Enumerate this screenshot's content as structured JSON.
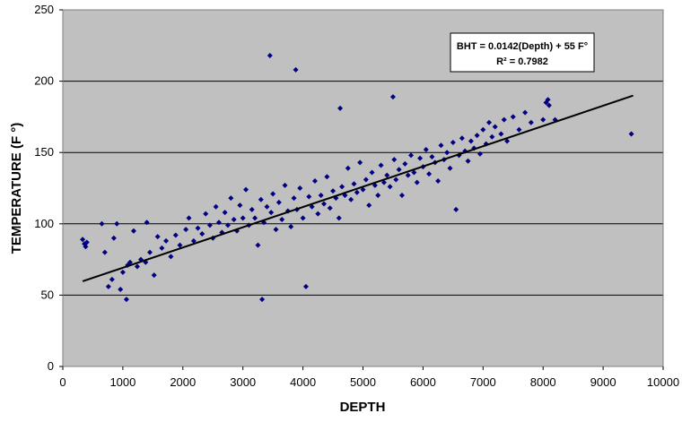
{
  "chart_data": {
    "type": "scatter",
    "title": "",
    "xlabel": "DEPTH",
    "ylabel": "TEMPERATURE (F °)",
    "xlim": [
      0,
      10000
    ],
    "ylim": [
      0,
      250
    ],
    "xticks": [
      "0",
      "1000",
      "2000",
      "3000",
      "4000",
      "5000",
      "6000",
      "7000",
      "8000",
      "9000",
      "10000"
    ],
    "yticks": [
      "0",
      "50",
      "100",
      "150",
      "200",
      "250"
    ],
    "grid": "horizontal",
    "legend": "none",
    "colors": {
      "marker": "#000080",
      "plot_bg": "#c0c0c0",
      "trendline": "#000000"
    },
    "trendline": {
      "slope": 0.0142,
      "intercept": 55,
      "x_range": [
        330,
        9500
      ]
    },
    "annotation": {
      "line1": "BHT = 0.0142(Depth) + 55 F°",
      "line2": "R² = 0.7982"
    },
    "points": [
      [
        330,
        89
      ],
      [
        360,
        86
      ],
      [
        380,
        84
      ],
      [
        400,
        87
      ],
      [
        650,
        100
      ],
      [
        700,
        80
      ],
      [
        760,
        56
      ],
      [
        820,
        61
      ],
      [
        850,
        90
      ],
      [
        900,
        100
      ],
      [
        960,
        54
      ],
      [
        1000,
        66
      ],
      [
        1060,
        47
      ],
      [
        1080,
        71
      ],
      [
        1120,
        73
      ],
      [
        1180,
        95
      ],
      [
        1240,
        70
      ],
      [
        1300,
        75
      ],
      [
        1380,
        73
      ],
      [
        1400,
        101
      ],
      [
        1450,
        80
      ],
      [
        1520,
        64
      ],
      [
        1580,
        91
      ],
      [
        1650,
        83
      ],
      [
        1720,
        88
      ],
      [
        1800,
        77
      ],
      [
        1880,
        92
      ],
      [
        1950,
        85
      ],
      [
        2050,
        96
      ],
      [
        2100,
        104
      ],
      [
        2180,
        88
      ],
      [
        2250,
        97
      ],
      [
        2320,
        93
      ],
      [
        2380,
        107
      ],
      [
        2450,
        99
      ],
      [
        2500,
        90
      ],
      [
        2550,
        112
      ],
      [
        2600,
        101
      ],
      [
        2650,
        94
      ],
      [
        2700,
        108
      ],
      [
        2750,
        99
      ],
      [
        2800,
        118
      ],
      [
        2850,
        103
      ],
      [
        2900,
        95
      ],
      [
        2950,
        113
      ],
      [
        3000,
        104
      ],
      [
        3050,
        124
      ],
      [
        3100,
        99
      ],
      [
        3150,
        110
      ],
      [
        3200,
        104
      ],
      [
        3250,
        85
      ],
      [
        3300,
        117
      ],
      [
        3320,
        47
      ],
      [
        3350,
        101
      ],
      [
        3400,
        112
      ],
      [
        3450,
        218
      ],
      [
        3470,
        108
      ],
      [
        3500,
        121
      ],
      [
        3550,
        96
      ],
      [
        3600,
        115
      ],
      [
        3650,
        103
      ],
      [
        3700,
        127
      ],
      [
        3750,
        109
      ],
      [
        3800,
        98
      ],
      [
        3850,
        118
      ],
      [
        3880,
        208
      ],
      [
        3900,
        110
      ],
      [
        3950,
        125
      ],
      [
        4000,
        104
      ],
      [
        4050,
        56
      ],
      [
        4100,
        119
      ],
      [
        4150,
        112
      ],
      [
        4200,
        130
      ],
      [
        4250,
        107
      ],
      [
        4300,
        120
      ],
      [
        4350,
        114
      ],
      [
        4400,
        133
      ],
      [
        4450,
        111
      ],
      [
        4500,
        123
      ],
      [
        4550,
        118
      ],
      [
        4600,
        104
      ],
      [
        4620,
        181
      ],
      [
        4650,
        126
      ],
      [
        4700,
        120
      ],
      [
        4750,
        139
      ],
      [
        4800,
        117
      ],
      [
        4850,
        128
      ],
      [
        4900,
        122
      ],
      [
        4950,
        143
      ],
      [
        5000,
        124
      ],
      [
        5050,
        131
      ],
      [
        5100,
        113
      ],
      [
        5150,
        136
      ],
      [
        5200,
        127
      ],
      [
        5250,
        120
      ],
      [
        5300,
        141
      ],
      [
        5350,
        129
      ],
      [
        5400,
        134
      ],
      [
        5450,
        126
      ],
      [
        5500,
        189
      ],
      [
        5520,
        145
      ],
      [
        5550,
        131
      ],
      [
        5600,
        138
      ],
      [
        5650,
        120
      ],
      [
        5700,
        142
      ],
      [
        5750,
        134
      ],
      [
        5800,
        148
      ],
      [
        5850,
        136
      ],
      [
        5900,
        129
      ],
      [
        5950,
        146
      ],
      [
        6000,
        140
      ],
      [
        6050,
        152
      ],
      [
        6100,
        135
      ],
      [
        6150,
        147
      ],
      [
        6200,
        143
      ],
      [
        6250,
        130
      ],
      [
        6300,
        155
      ],
      [
        6350,
        145
      ],
      [
        6400,
        150
      ],
      [
        6450,
        139
      ],
      [
        6500,
        157
      ],
      [
        6550,
        110
      ],
      [
        6600,
        148
      ],
      [
        6650,
        160
      ],
      [
        6700,
        151
      ],
      [
        6750,
        144
      ],
      [
        6800,
        158
      ],
      [
        6850,
        153
      ],
      [
        6900,
        162
      ],
      [
        6950,
        149
      ],
      [
        7000,
        166
      ],
      [
        7050,
        156
      ],
      [
        7100,
        171
      ],
      [
        7150,
        161
      ],
      [
        7200,
        168
      ],
      [
        7300,
        163
      ],
      [
        7350,
        173
      ],
      [
        7400,
        158
      ],
      [
        7500,
        175
      ],
      [
        7600,
        166
      ],
      [
        7700,
        178
      ],
      [
        7800,
        171
      ],
      [
        8000,
        173
      ],
      [
        8050,
        185
      ],
      [
        8080,
        187
      ],
      [
        8100,
        183
      ],
      [
        8200,
        173
      ],
      [
        9470,
        163
      ]
    ]
  }
}
